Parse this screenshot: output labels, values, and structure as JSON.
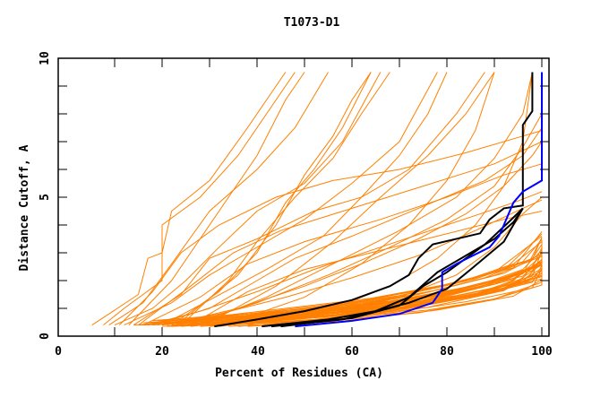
{
  "chart_data": {
    "type": "line",
    "title": "T1073-D1",
    "xlabel": "Percent of Residues (CA)",
    "ylabel": "Distance Cutoff, A",
    "xlim": [
      0,
      100
    ],
    "ylim": [
      0,
      10
    ],
    "xticks": [
      "0",
      "20",
      "40",
      "60",
      "80",
      "100"
    ],
    "yticks": [
      "0",
      "5",
      "10"
    ],
    "grid": false,
    "colors": {
      "models": "#ff8000",
      "highlight": "#000000",
      "best": "#0000ff"
    },
    "series_orange": [
      [
        [
          6,
          0.4
        ],
        [
          9,
          0.8
        ],
        [
          15,
          1.5
        ],
        [
          17,
          2.8
        ],
        [
          20,
          3
        ],
        [
          22,
          4.5
        ],
        [
          30,
          5.6
        ],
        [
          38,
          7.5
        ],
        [
          42,
          8.5
        ],
        [
          46,
          9.5
        ]
      ],
      [
        [
          8,
          0.4
        ],
        [
          12,
          1
        ],
        [
          20,
          2
        ],
        [
          20,
          4
        ],
        [
          28,
          5
        ],
        [
          36,
          6.5
        ],
        [
          42,
          8
        ],
        [
          48,
          9.5
        ]
      ],
      [
        [
          9,
          0.4
        ],
        [
          16,
          1.2
        ],
        [
          22,
          2.6
        ],
        [
          30,
          4.5
        ],
        [
          40,
          6
        ],
        [
          48,
          7.5
        ],
        [
          55,
          9.5
        ]
      ],
      [
        [
          10,
          0.4
        ],
        [
          18,
          1
        ],
        [
          25,
          2
        ],
        [
          32,
          3.2
        ],
        [
          40,
          4.5
        ],
        [
          50,
          5.5
        ],
        [
          58,
          7
        ],
        [
          66,
          9.5
        ]
      ],
      [
        [
          12,
          0.4
        ],
        [
          22,
          1.2
        ],
        [
          30,
          2.2
        ],
        [
          38,
          3
        ],
        [
          50,
          4.2
        ],
        [
          60,
          5.5
        ],
        [
          70,
          7
        ],
        [
          78,
          9.5
        ]
      ],
      [
        [
          14,
          0.4
        ],
        [
          24,
          1.5
        ],
        [
          30,
          2.8
        ],
        [
          40,
          3.5
        ],
        [
          52,
          4.5
        ],
        [
          62,
          5
        ],
        [
          72,
          6
        ],
        [
          82,
          8
        ],
        [
          88,
          9.5
        ]
      ],
      [
        [
          15,
          0.4
        ],
        [
          26,
          1.8
        ],
        [
          35,
          3
        ],
        [
          45,
          3.8
        ],
        [
          60,
          4.6
        ],
        [
          75,
          5.4
        ],
        [
          90,
          6.2
        ],
        [
          100,
          7
        ]
      ],
      [
        [
          16,
          0.4
        ],
        [
          28,
          1.4
        ],
        [
          38,
          2.6
        ],
        [
          50,
          3.4
        ],
        [
          66,
          4.2
        ],
        [
          80,
          5
        ],
        [
          92,
          5.8
        ],
        [
          100,
          6.2
        ]
      ],
      [
        [
          18,
          0.4
        ],
        [
          30,
          1
        ],
        [
          40,
          2
        ],
        [
          48,
          2.8
        ],
        [
          60,
          3.6
        ],
        [
          74,
          4.6
        ],
        [
          88,
          5.6
        ],
        [
          96,
          6.5
        ],
        [
          100,
          7.5
        ]
      ],
      [
        [
          20,
          0.4
        ],
        [
          30,
          1.3
        ],
        [
          42,
          2.4
        ],
        [
          54,
          3.6
        ],
        [
          62,
          5
        ],
        [
          70,
          6.5
        ],
        [
          76,
          8
        ],
        [
          80,
          9.5
        ]
      ],
      [
        [
          22,
          0.4
        ],
        [
          32,
          1.6
        ],
        [
          40,
          3
        ],
        [
          46,
          4.8
        ],
        [
          52,
          6
        ],
        [
          58,
          7.5
        ],
        [
          64,
          9.5
        ]
      ],
      [
        [
          24,
          0.4
        ],
        [
          34,
          2
        ],
        [
          40,
          3.4
        ],
        [
          48,
          5
        ],
        [
          56,
          6.4
        ],
        [
          62,
          8
        ],
        [
          68,
          9.5
        ]
      ],
      [
        [
          17,
          0.4
        ],
        [
          28,
          0.9
        ],
        [
          40,
          1.6
        ],
        [
          52,
          2.4
        ],
        [
          66,
          3.2
        ],
        [
          80,
          4
        ],
        [
          94,
          4.8
        ],
        [
          100,
          5.2
        ]
      ],
      [
        [
          19,
          0.4
        ],
        [
          32,
          0.8
        ],
        [
          46,
          1.4
        ],
        [
          60,
          2.1
        ],
        [
          74,
          2.9
        ],
        [
          86,
          3.8
        ],
        [
          96,
          4.6
        ],
        [
          100,
          4.9
        ]
      ],
      [
        [
          21,
          0.4
        ],
        [
          36,
          1
        ],
        [
          50,
          1.8
        ],
        [
          62,
          2.6
        ],
        [
          74,
          3.5
        ],
        [
          84,
          4.4
        ],
        [
          92,
          5.4
        ],
        [
          98,
          6.5
        ],
        [
          100,
          7
        ]
      ],
      [
        [
          14,
          0.4
        ],
        [
          30,
          0.6
        ],
        [
          50,
          0.8
        ],
        [
          66,
          1.1
        ],
        [
          80,
          1.5
        ],
        [
          92,
          2
        ],
        [
          100,
          2.6
        ]
      ],
      [
        [
          15,
          0.4
        ],
        [
          32,
          0.5
        ],
        [
          52,
          0.7
        ],
        [
          70,
          1
        ],
        [
          84,
          1.4
        ],
        [
          94,
          2
        ],
        [
          100,
          2.9
        ]
      ],
      [
        [
          16,
          0.4
        ],
        [
          36,
          0.6
        ],
        [
          56,
          0.9
        ],
        [
          72,
          1.3
        ],
        [
          86,
          1.8
        ],
        [
          96,
          2.4
        ],
        [
          100,
          3.1
        ]
      ],
      [
        [
          18,
          0.4
        ],
        [
          38,
          0.7
        ],
        [
          58,
          1
        ],
        [
          74,
          1.5
        ],
        [
          88,
          2.1
        ],
        [
          98,
          2.8
        ],
        [
          100,
          3.3
        ]
      ],
      [
        [
          20,
          0.4
        ],
        [
          40,
          0.8
        ],
        [
          60,
          1.2
        ],
        [
          76,
          1.7
        ],
        [
          90,
          2.3
        ],
        [
          100,
          3.6
        ]
      ],
      [
        [
          22,
          0.4
        ],
        [
          42,
          0.6
        ],
        [
          62,
          0.9
        ],
        [
          78,
          1.3
        ],
        [
          92,
          1.8
        ],
        [
          98,
          2.5
        ]
      ],
      [
        [
          24,
          0.4
        ],
        [
          44,
          0.7
        ],
        [
          64,
          1.1
        ],
        [
          80,
          1.6
        ],
        [
          94,
          2.2
        ],
        [
          100,
          2.6
        ]
      ],
      [
        [
          26,
          0.4
        ],
        [
          46,
          0.8
        ],
        [
          66,
          1.3
        ],
        [
          82,
          1.9
        ],
        [
          94,
          2.6
        ],
        [
          100,
          3.4
        ]
      ],
      [
        [
          28,
          0.4
        ],
        [
          48,
          0.6
        ],
        [
          68,
          0.9
        ],
        [
          84,
          1.4
        ],
        [
          96,
          1.9
        ],
        [
          100,
          2.2
        ]
      ],
      [
        [
          30,
          0.4
        ],
        [
          50,
          0.7
        ],
        [
          70,
          1.1
        ],
        [
          86,
          1.7
        ],
        [
          98,
          2.5
        ]
      ],
      [
        [
          32,
          0.4
        ],
        [
          52,
          0.6
        ],
        [
          72,
          1
        ],
        [
          88,
          1.5
        ],
        [
          98,
          2.1
        ],
        [
          100,
          2.4
        ]
      ],
      [
        [
          25,
          0.4
        ],
        [
          40,
          1.2
        ],
        [
          55,
          2.2
        ],
        [
          68,
          3.2
        ],
        [
          80,
          4.2
        ],
        [
          90,
          5.4
        ],
        [
          96,
          6.8
        ],
        [
          100,
          8
        ]
      ],
      [
        [
          27,
          0.4
        ],
        [
          42,
          1.4
        ],
        [
          56,
          2.6
        ],
        [
          70,
          3.8
        ],
        [
          82,
          5
        ],
        [
          90,
          6.4
        ],
        [
          96,
          8
        ],
        [
          98,
          9.5
        ]
      ],
      [
        [
          29,
          0.4
        ],
        [
          44,
          1.8
        ],
        [
          56,
          3.4
        ],
        [
          66,
          5
        ],
        [
          76,
          6.5
        ],
        [
          84,
          8
        ],
        [
          90,
          9.5
        ]
      ],
      [
        [
          23,
          0.4
        ],
        [
          36,
          2.2
        ],
        [
          44,
          4
        ],
        [
          50,
          5.8
        ],
        [
          56,
          7.2
        ],
        [
          60,
          8.5
        ],
        [
          64,
          9.5
        ]
      ],
      [
        [
          13,
          0.4
        ],
        [
          22,
          2
        ],
        [
          28,
          3.5
        ],
        [
          34,
          5
        ],
        [
          40,
          6.5
        ],
        [
          46,
          8.5
        ],
        [
          50,
          9.5
        ]
      ],
      [
        [
          11,
          0.4
        ],
        [
          18,
          1.6
        ],
        [
          24,
          3
        ],
        [
          32,
          4
        ],
        [
          44,
          5
        ],
        [
          56,
          5.6
        ],
        [
          70,
          6
        ],
        [
          84,
          6.6
        ],
        [
          96,
          7.2
        ],
        [
          100,
          7.4
        ]
      ],
      [
        [
          35,
          0.4
        ],
        [
          55,
          0.8
        ],
        [
          70,
          1.4
        ],
        [
          82,
          2.2
        ],
        [
          90,
          3.2
        ],
        [
          96,
          4.4
        ],
        [
          100,
          5
        ]
      ],
      [
        [
          38,
          0.4
        ],
        [
          56,
          1
        ],
        [
          68,
          1.8
        ],
        [
          78,
          2.8
        ],
        [
          86,
          4
        ],
        [
          92,
          5.4
        ],
        [
          96,
          7
        ],
        [
          98,
          9.5
        ]
      ],
      [
        [
          33,
          0.4
        ],
        [
          50,
          1.4
        ],
        [
          62,
          2.6
        ],
        [
          72,
          4
        ],
        [
          80,
          5.6
        ],
        [
          86,
          7.4
        ],
        [
          90,
          9.5
        ]
      ],
      [
        [
          26,
          0.4
        ],
        [
          38,
          1.6
        ],
        [
          50,
          2.4
        ],
        [
          64,
          3
        ],
        [
          78,
          3.6
        ],
        [
          92,
          4.2
        ],
        [
          100,
          4.5
        ]
      ]
    ],
    "series_black": [
      [
        [
          31,
          0.35
        ],
        [
          40,
          0.6
        ],
        [
          50,
          0.9
        ],
        [
          60,
          1.3
        ],
        [
          68,
          1.8
        ],
        [
          72,
          2.2
        ],
        [
          74,
          2.8
        ],
        [
          77,
          3.3
        ],
        [
          87,
          3.7
        ],
        [
          89,
          4.2
        ],
        [
          92,
          4.6
        ],
        [
          96,
          4.7
        ],
        [
          96,
          7.6
        ],
        [
          98,
          8.1
        ],
        [
          98,
          9.5
        ]
      ],
      [
        [
          41,
          0.35
        ],
        [
          55,
          0.6
        ],
        [
          65,
          0.9
        ],
        [
          72,
          1.4
        ],
        [
          78,
          2.3
        ],
        [
          84,
          2.9
        ],
        [
          90,
          3.5
        ],
        [
          94,
          4.1
        ],
        [
          96,
          4.6
        ]
      ],
      [
        [
          45,
          0.35
        ],
        [
          60,
          0.65
        ],
        [
          70,
          1.1
        ],
        [
          75,
          1.8
        ],
        [
          80,
          2.3
        ],
        [
          88,
          3.3
        ],
        [
          93,
          4.1
        ],
        [
          96,
          4.6
        ]
      ],
      [
        [
          43,
          0.35
        ],
        [
          58,
          0.6
        ],
        [
          72,
          1.2
        ],
        [
          80,
          1.7
        ],
        [
          85,
          2.4
        ],
        [
          92,
          3.4
        ],
        [
          96,
          4.6
        ]
      ]
    ],
    "series_blue": [
      [
        48,
        0.35
      ],
      [
        60,
        0.55
      ],
      [
        70,
        0.8
      ],
      [
        77,
        1.2
      ],
      [
        79,
        1.7
      ],
      [
        79,
        2.3
      ],
      [
        82,
        2.6
      ],
      [
        89,
        3.2
      ],
      [
        91,
        3.6
      ],
      [
        94,
        4.8
      ],
      [
        96,
        5.2
      ],
      [
        100,
        5.6
      ],
      [
        100,
        9.5
      ]
    ]
  }
}
